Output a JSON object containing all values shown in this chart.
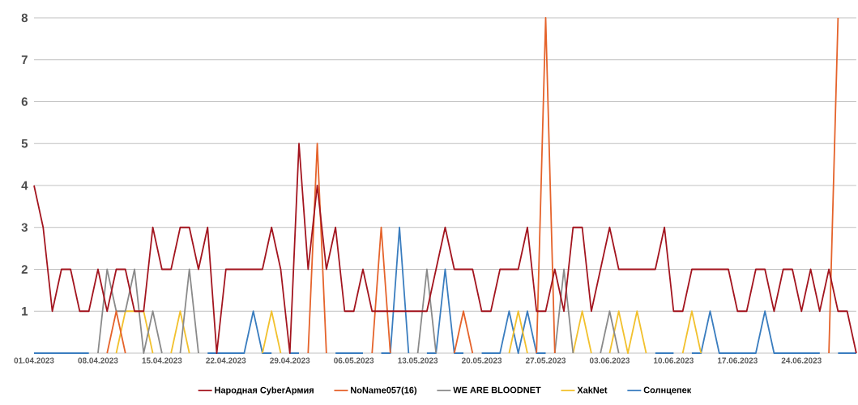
{
  "chart_data": {
    "type": "line",
    "categories": [
      "01.04.2023",
      null,
      null,
      null,
      null,
      null,
      null,
      "08.04.2023",
      null,
      null,
      null,
      null,
      null,
      null,
      "15.04.2023",
      null,
      null,
      null,
      null,
      null,
      null,
      "22.04.2023",
      null,
      null,
      null,
      null,
      null,
      null,
      "29.04.2023",
      null,
      null,
      null,
      null,
      null,
      null,
      "06.05.2023",
      null,
      null,
      null,
      null,
      null,
      null,
      "13.05.2023",
      null,
      null,
      null,
      null,
      null,
      null,
      "20.05.2023",
      null,
      null,
      null,
      null,
      null,
      null,
      "27.05.2023",
      null,
      null,
      null,
      null,
      null,
      null,
      "03.06.2023",
      null,
      null,
      null,
      null,
      null,
      null,
      "10.06.2023",
      null,
      null,
      null,
      null,
      null,
      null,
      "17.06.2023",
      null,
      null,
      null,
      null,
      null,
      null,
      "24.06.2023",
      null,
      null,
      null,
      null,
      null,
      null
    ],
    "series": [
      {
        "name": "Народная CyberАрмия",
        "color": "#a3151f",
        "values": [
          4,
          3,
          1,
          2,
          2,
          1,
          1,
          2,
          1,
          2,
          2,
          1,
          1,
          3,
          2,
          2,
          3,
          3,
          2,
          3,
          0,
          2,
          2,
          2,
          2,
          2,
          3,
          2,
          0,
          5,
          2,
          4,
          2,
          3,
          1,
          1,
          2,
          1,
          1,
          1,
          1,
          1,
          1,
          1,
          2,
          3,
          2,
          2,
          2,
          1,
          1,
          2,
          2,
          2,
          3,
          1,
          1,
          2,
          1,
          3,
          3,
          1,
          2,
          3,
          2,
          2,
          2,
          2,
          2,
          3,
          1,
          1,
          2,
          2,
          2,
          2,
          2,
          1,
          1,
          2,
          2,
          1,
          2,
          2,
          1,
          2,
          1,
          2,
          1,
          1,
          0
        ]
      },
      {
        "name": "NoName057(16)",
        "color": "#e5632b",
        "values": [
          null,
          null,
          null,
          null,
          null,
          null,
          null,
          null,
          0,
          1,
          0,
          null,
          null,
          null,
          null,
          null,
          null,
          null,
          null,
          null,
          null,
          null,
          null,
          null,
          null,
          null,
          null,
          null,
          null,
          null,
          0,
          5,
          0,
          null,
          null,
          null,
          null,
          0,
          3,
          0,
          null,
          null,
          null,
          null,
          null,
          null,
          0,
          1,
          0,
          null,
          null,
          null,
          null,
          null,
          null,
          0,
          8,
          0,
          null,
          null,
          null,
          null,
          null,
          null,
          null,
          null,
          null,
          null,
          null,
          null,
          null,
          null,
          null,
          null,
          null,
          null,
          null,
          null,
          null,
          null,
          null,
          null,
          null,
          null,
          null,
          null,
          null,
          0,
          8,
          null,
          null
        ]
      },
      {
        "name": "WE ARE BLOODNET",
        "color": "#8a8a8a",
        "values": [
          null,
          null,
          null,
          null,
          null,
          null,
          null,
          0,
          2,
          1,
          1,
          2,
          0,
          1,
          0,
          null,
          0,
          2,
          0,
          null,
          null,
          null,
          null,
          null,
          null,
          null,
          null,
          null,
          null,
          null,
          null,
          null,
          null,
          null,
          null,
          null,
          null,
          null,
          null,
          null,
          null,
          null,
          0,
          2,
          0,
          null,
          null,
          null,
          null,
          null,
          null,
          null,
          null,
          null,
          null,
          null,
          null,
          0,
          2,
          0,
          null,
          null,
          0,
          1,
          0,
          null,
          null,
          null,
          null,
          null,
          null,
          null,
          null,
          null,
          null,
          null,
          null,
          null,
          null,
          null,
          null,
          null,
          null,
          null,
          null,
          null,
          null,
          null,
          null,
          null,
          null
        ]
      },
      {
        "name": "XakNet",
        "color": "#f2c12e",
        "values": [
          null,
          null,
          null,
          null,
          null,
          null,
          null,
          null,
          null,
          0,
          1,
          1,
          1,
          0,
          null,
          0,
          1,
          0,
          null,
          null,
          null,
          null,
          null,
          null,
          null,
          0,
          1,
          0,
          null,
          null,
          null,
          null,
          null,
          null,
          null,
          null,
          null,
          null,
          null,
          null,
          null,
          null,
          null,
          null,
          null,
          null,
          null,
          null,
          null,
          null,
          null,
          null,
          0,
          1,
          0,
          null,
          null,
          null,
          null,
          0,
          1,
          0,
          null,
          0,
          1,
          0,
          1,
          0,
          null,
          null,
          null,
          0,
          1,
          0,
          null,
          null,
          null,
          null,
          null,
          null,
          null,
          null,
          null,
          null,
          null,
          null,
          null,
          null,
          null,
          null,
          null
        ]
      },
      {
        "name": "Солнцепек",
        "color": "#3a7dbf",
        "values": [
          0,
          0,
          0,
          0,
          0,
          0,
          0,
          null,
          null,
          null,
          null,
          null,
          null,
          null,
          null,
          null,
          null,
          null,
          null,
          0,
          0,
          0,
          0,
          0,
          1,
          0,
          0,
          null,
          0,
          0,
          null,
          null,
          null,
          0,
          0,
          0,
          0,
          null,
          0,
          0,
          3,
          0,
          null,
          0,
          0,
          2,
          0,
          0,
          null,
          0,
          0,
          0,
          1,
          0,
          1,
          0,
          0,
          null,
          null,
          null,
          null,
          null,
          null,
          null,
          null,
          null,
          null,
          null,
          0,
          0,
          0,
          null,
          0,
          0,
          1,
          0,
          0,
          0,
          0,
          0,
          1,
          0,
          0,
          0,
          0,
          0,
          0,
          null,
          0,
          0,
          0
        ]
      }
    ],
    "ylim": [
      0,
      8
    ],
    "yticks": [
      {
        "value": 0,
        "label": null
      },
      1,
      2,
      3,
      4,
      5,
      6,
      7,
      8
    ],
    "grid": "y",
    "legend": "bottom",
    "marker": "none",
    "line_style": "solid"
  }
}
